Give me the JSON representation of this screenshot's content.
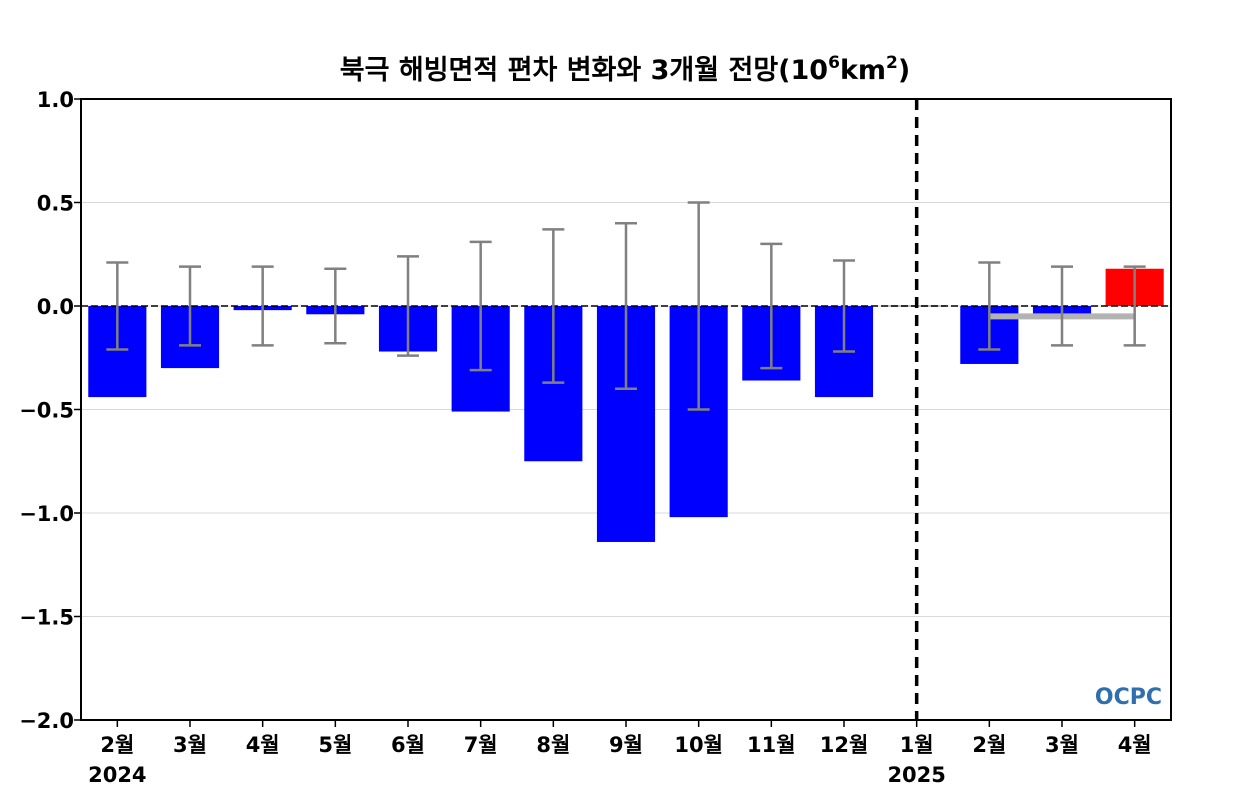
{
  "chart_data": {
    "type": "bar",
    "title": {
      "main": "북극 해빙면적 편차 변화와 3개월 전망(10",
      "sup1": "6",
      "mid": "km",
      "sup2": "2",
      "end": ")"
    },
    "xlabel": "",
    "ylabel": "",
    "ylim": [
      -2.0,
      1.0
    ],
    "yticks": [
      1.0,
      0.5,
      0.0,
      -0.5,
      -1.0,
      -1.5,
      -2.0
    ],
    "ytick_labels": [
      "1.0",
      "0.5",
      "0.0",
      "−0.5",
      "−1.0",
      "−1.5",
      "−2.0"
    ],
    "grid": true,
    "categories": [
      "2월",
      "3월",
      "4월",
      "5월",
      "6월",
      "7월",
      "8월",
      "9월",
      "10월",
      "11월",
      "12월",
      "1월",
      "2월",
      "3월",
      "4월"
    ],
    "year_labels": [
      {
        "index": 0,
        "label": "2024"
      },
      {
        "index": 11,
        "label": "2025"
      }
    ],
    "values": [
      -0.44,
      -0.3,
      -0.02,
      -0.04,
      -0.22,
      -0.51,
      -0.75,
      -1.14,
      -1.02,
      -0.36,
      -0.44,
      0.0,
      -0.28,
      -0.04,
      0.18
    ],
    "error_bars": [
      0.21,
      0.19,
      0.19,
      0.18,
      0.24,
      0.31,
      0.37,
      0.4,
      0.5,
      0.3,
      0.22,
      null,
      0.21,
      0.19,
      0.19
    ],
    "bar_colors": [
      "#0000ff",
      "#0000ff",
      "#0000ff",
      "#0000ff",
      "#0000ff",
      "#0000ff",
      "#0000ff",
      "#0000ff",
      "#0000ff",
      "#0000ff",
      "#0000ff",
      "#0000ff",
      "#0000ff",
      "#0000ff",
      "#ff0000"
    ],
    "forecast_start_index": 11,
    "forecast_mean_line": {
      "from_index": 12,
      "to_index": 14,
      "value": -0.05,
      "color": "#b3b3b3"
    },
    "error_bar_color": "#808080",
    "logo": "OCPC"
  }
}
